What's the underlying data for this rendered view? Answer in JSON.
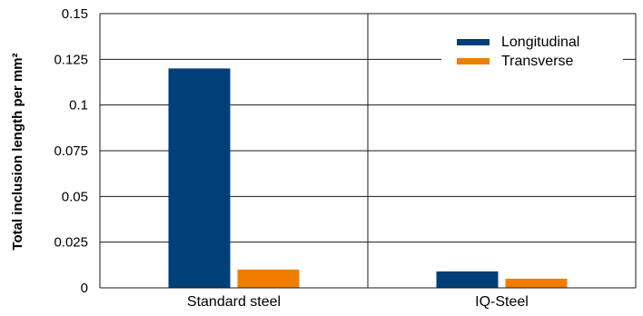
{
  "chart_data": {
    "type": "bar",
    "title": "",
    "xlabel": "",
    "ylabel": "Total inclusion length per mm²",
    "categories": [
      "Standard steel",
      "IQ-Steel"
    ],
    "series": [
      {
        "name": "Longitudinal",
        "values": [
          0.12,
          0.009
        ],
        "color": "#003f78"
      },
      {
        "name": "Transverse",
        "values": [
          0.01,
          0.005
        ],
        "color": "#f07d00"
      }
    ],
    "ylim": [
      0,
      0.15
    ],
    "yticks": [
      "0",
      "0.025",
      "0.05",
      "0.075",
      "0.1",
      "0.125",
      "0.15"
    ],
    "grid": true,
    "legend_position": "top-right"
  }
}
